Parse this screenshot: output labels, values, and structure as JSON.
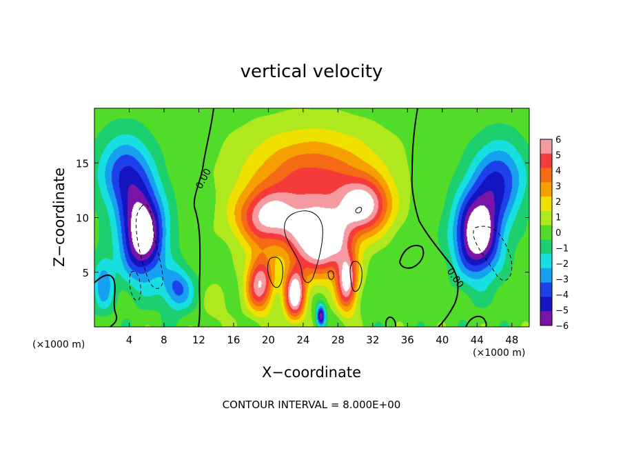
{
  "chart_data": {
    "type": "heatmap",
    "title": "vertical velocity",
    "xlabel": "X−coordinate",
    "ylabel": "Z−coordinate",
    "x_unit_label": "(×1000 m)",
    "y_unit_label": "(×1000 m)",
    "xlim": [
      0,
      50
    ],
    "ylim": [
      0,
      20
    ],
    "x_ticks": [
      4,
      8,
      12,
      16,
      20,
      24,
      28,
      32,
      36,
      40,
      44,
      48
    ],
    "y_ticks": [
      5,
      10,
      15
    ],
    "x_tick_labels": [
      "4",
      "8",
      "12",
      "16",
      "20",
      "24",
      "28",
      "32",
      "36",
      "40",
      "44",
      "48"
    ],
    "y_tick_labels": [
      "5",
      "10",
      "15"
    ],
    "colorbar": {
      "min": -6,
      "max": 6,
      "labels": [
        "6",
        "5",
        "4",
        "3",
        "2",
        "1",
        "0",
        "−1",
        "−2",
        "−3",
        "−4",
        "−5",
        "−6"
      ],
      "colors": [
        "#f59aa0",
        "#f53a3a",
        "#f56a14",
        "#f5a000",
        "#f0e000",
        "#b0e820",
        "#50dc28",
        "#1cd070",
        "#18e0e0",
        "#18a0f0",
        "#1e40ea",
        "#1414c0",
        "#7814a8"
      ]
    },
    "contour_interval_text": "CONTOUR INTERVAL =  8.000E+00",
    "contour_label": "0.00",
    "features": [
      {
        "x": 20.0,
        "z": 10.0,
        "w": 6.0,
        "sx": 3.8,
        "sz": 2.6
      },
      {
        "x": 26.0,
        "z": 8.0,
        "w": 8.0,
        "sx": 3.4,
        "sz": 3.2
      },
      {
        "x": 31.0,
        "z": 11.0,
        "w": 6.0,
        "sx": 3.0,
        "sz": 2.5
      },
      {
        "x": 19.0,
        "z": 4.0,
        "w": 6.0,
        "sx": 1.6,
        "sz": 2.6
      },
      {
        "x": 23.0,
        "z": 3.0,
        "w": 7.0,
        "sx": 1.2,
        "sz": 2.4
      },
      {
        "x": 29.0,
        "z": 4.0,
        "w": 6.0,
        "sx": 1.2,
        "sz": 2.6
      },
      {
        "x": 25.0,
        "z": 13.5,
        "w": 3.5,
        "sx": 7.0,
        "sz": 3.0
      },
      {
        "x": 25.0,
        "z": 16.5,
        "w": 1.4,
        "sx": 8.5,
        "sz": 3.2
      },
      {
        "x": 5.5,
        "z": 8.5,
        "w": -7.5,
        "sx": 2.5,
        "sz": 4.0
      },
      {
        "x": 3.5,
        "z": 14.0,
        "w": -4.0,
        "sx": 3.0,
        "sz": 3.5
      },
      {
        "x": 9.5,
        "z": 3.5,
        "w": -3.5,
        "sx": 1.8,
        "sz": 2.0
      },
      {
        "x": 1.0,
        "z": 4.0,
        "w": -3.0,
        "sx": 1.2,
        "sz": 2.5
      },
      {
        "x": 44.0,
        "z": 8.5,
        "w": -7.5,
        "sx": 2.6,
        "sz": 3.8
      },
      {
        "x": 46.5,
        "z": 13.5,
        "w": -4.0,
        "sx": 3.0,
        "sz": 3.5
      },
      {
        "x": 26.0,
        "z": 1.0,
        "w": -6.0,
        "sx": 0.5,
        "sz": 1.0
      },
      {
        "x": 14.0,
        "z": 2.0,
        "w": 1.0,
        "sx": 1.5,
        "sz": 2.0
      }
    ]
  }
}
